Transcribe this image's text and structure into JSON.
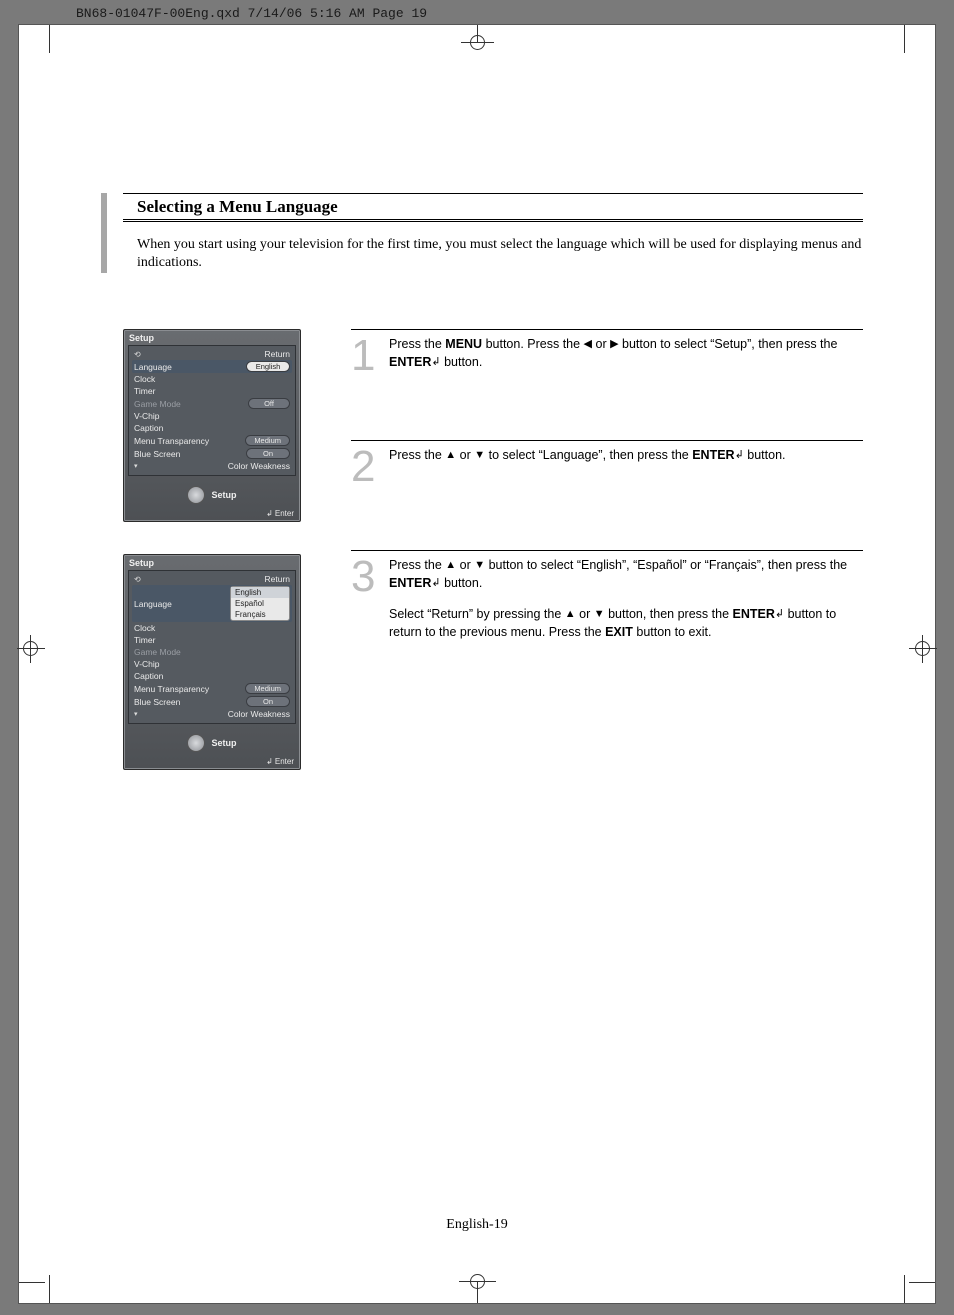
{
  "header_strip": "BN68-01047F-00Eng.qxd  7/14/06  5:16 AM  Page 19",
  "title": "Selecting a Menu Language",
  "intro": "When you start using your television for the first time, you must select the language which will be used for displaying menus and indications.",
  "page_footer": "English-19",
  "icons": {
    "left": "◀",
    "right": "▶",
    "up": "▲",
    "down": "▼",
    "enter": "↲"
  },
  "panel_shared": {
    "title": "Setup",
    "return": "Return",
    "footer_label": "Setup",
    "enter_label": "Enter"
  },
  "panel1": {
    "rows": [
      {
        "label": "Language",
        "value": "English",
        "selected": true,
        "pill": "white"
      },
      {
        "label": "Clock"
      },
      {
        "label": "Timer"
      },
      {
        "label": "Game Mode",
        "value": "Off",
        "dim": true,
        "pill": "slim"
      },
      {
        "label": "V-Chip"
      },
      {
        "label": "Caption"
      },
      {
        "label": "Menu Transparency",
        "value": "Medium",
        "pill": "norm"
      },
      {
        "label": "Blue Screen",
        "value": "On",
        "pill": "norm"
      },
      {
        "label": "Color Weakness",
        "arrow": true
      }
    ]
  },
  "panel2": {
    "rows": [
      {
        "label": "Language",
        "selected": true,
        "dropdown": [
          "English",
          "Español",
          "Français"
        ],
        "drop_sel": 0
      },
      {
        "label": "Clock"
      },
      {
        "label": "Timer"
      },
      {
        "label": "Game Mode",
        "dim": true
      },
      {
        "label": "V-Chip"
      },
      {
        "label": "Caption"
      },
      {
        "label": "Menu Transparency",
        "value": "Medium",
        "pill": "norm"
      },
      {
        "label": "Blue Screen",
        "value": "On",
        "pill": "norm"
      },
      {
        "label": "Color Weakness",
        "arrow": true
      }
    ]
  },
  "steps": [
    {
      "num": "1",
      "html": "Press the <b>MENU</b> button. Press the <span class='nav-ico'>◀</span> or <span class='nav-ico'>▶</span> button to select “Setup”, then press the <b>ENTER</b><span class='nav-ico'>↲</span> button."
    },
    {
      "num": "2",
      "html": "Press the <span class='nav-ico'>▲</span> or <span class='nav-ico'>▼</span> to select “Language”, then press the <b>ENTER</b><span class='nav-ico'>↲</span> button."
    },
    {
      "num": "3",
      "html": "Press the <span class='nav-ico'>▲</span> or <span class='nav-ico'>▼</span> button to select “English”, “Español” or “Français”, then press the <b>ENTER</b><span class='nav-ico'>↲</span> button.",
      "html2": "Select “Return” by pressing the <span class='nav-ico'>▲</span> or <span class='nav-ico'>▼</span> button, then press the <b>ENTER</b><span class='nav-ico'>↲</span> button to return to the previous menu. Press the <b>EXIT</b> button to exit."
    }
  ],
  "colors": {
    "page_bg": "#7a7a7a",
    "panel_bg_top": "#696c70",
    "panel_bg_bot": "#4d5054",
    "step_num": "#bcbcbc",
    "accent": "#a7a7a7"
  }
}
